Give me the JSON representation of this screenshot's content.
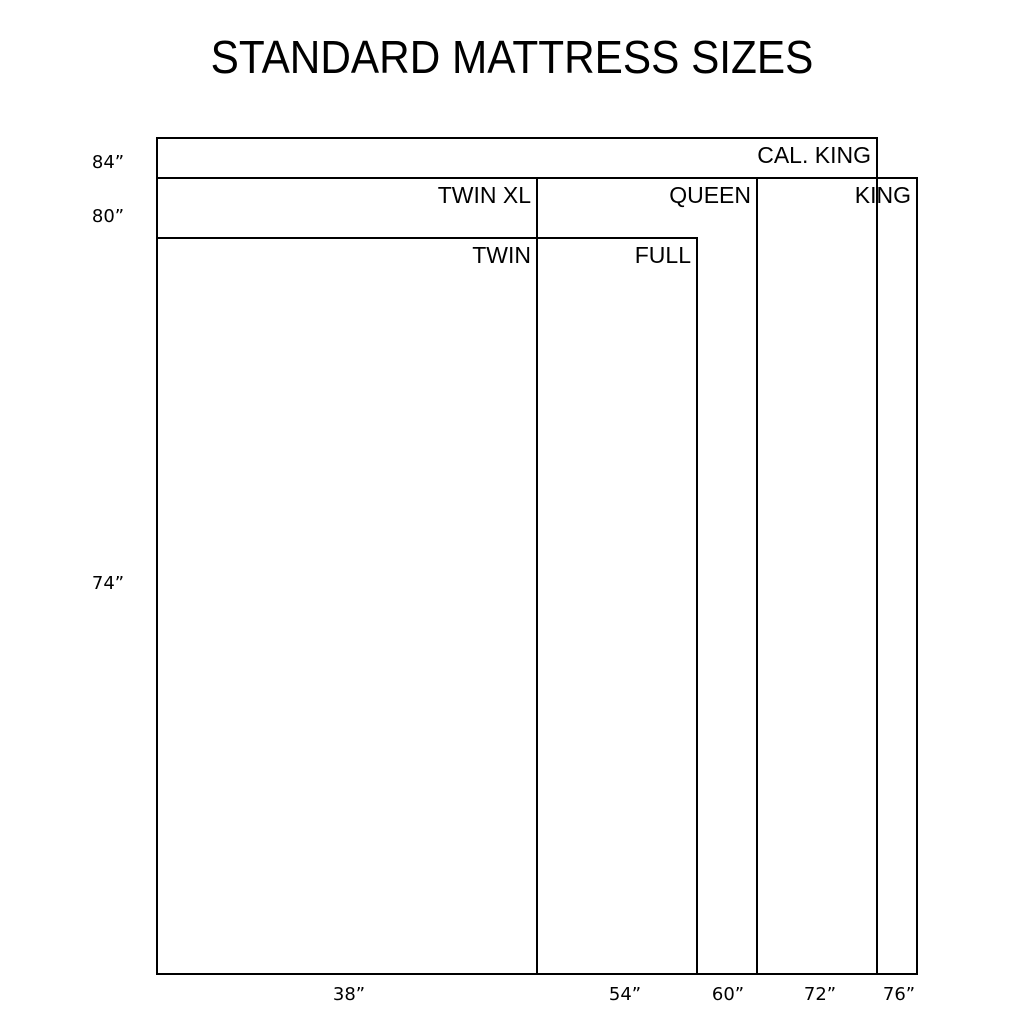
{
  "title": "STANDARD MATTRESS SIZES",
  "colors": {
    "outline": "#000000",
    "dashed_line": "#999999",
    "background": "#ffffff"
  },
  "mattresses": [
    {
      "name": "CAL. KING",
      "width_in": 72,
      "length_in": 84
    },
    {
      "name": "KING",
      "width_in": 76,
      "length_in": 80
    },
    {
      "name": "QUEEN",
      "width_in": 60,
      "length_in": 80
    },
    {
      "name": "TWIN  XL",
      "width_in": 38,
      "length_in": 80
    },
    {
      "name": "FULL",
      "width_in": 54,
      "length_in": 74
    },
    {
      "name": "TWIN",
      "width_in": 38,
      "length_in": 74
    }
  ],
  "length_labels": [
    {
      "value": 84,
      "label": "84”"
    },
    {
      "value": 80,
      "label": "80”"
    },
    {
      "value": 74,
      "label": "74”"
    }
  ],
  "width_labels": [
    {
      "value": 38,
      "label": "38”"
    },
    {
      "value": 54,
      "label": "54”"
    },
    {
      "value": 60,
      "label": "60”"
    },
    {
      "value": 72,
      "label": "72”"
    },
    {
      "value": 76,
      "label": "76”"
    }
  ],
  "dashed_guide_width_in": 72
}
